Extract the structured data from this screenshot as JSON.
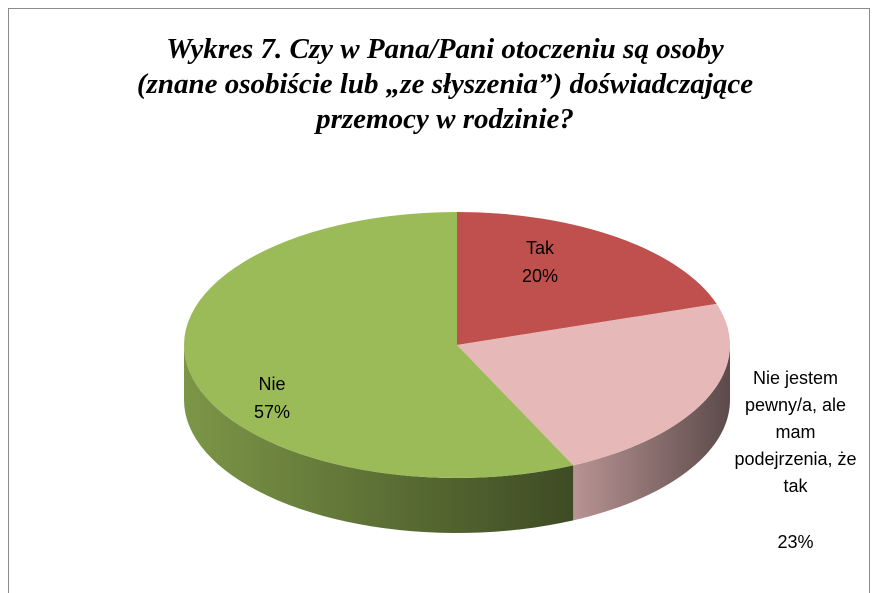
{
  "chart_data": {
    "type": "pie",
    "title": "Wykres 7. Czy w Pana/Pani otoczeniu są osoby\n(znane osobiście lub „ze słyszenia”) doświadczające\nprzemocy w rodzinie?",
    "categories": [
      "Tak",
      "Nie jestem pewny/a, ale mam podejrzenia, że tak",
      "Nie"
    ],
    "values": [
      20,
      23,
      57
    ],
    "value_labels": [
      "20%",
      "23%",
      "57%"
    ],
    "colors": [
      "#c0504d",
      "#e6b9b8",
      "#9bbb59"
    ]
  }
}
